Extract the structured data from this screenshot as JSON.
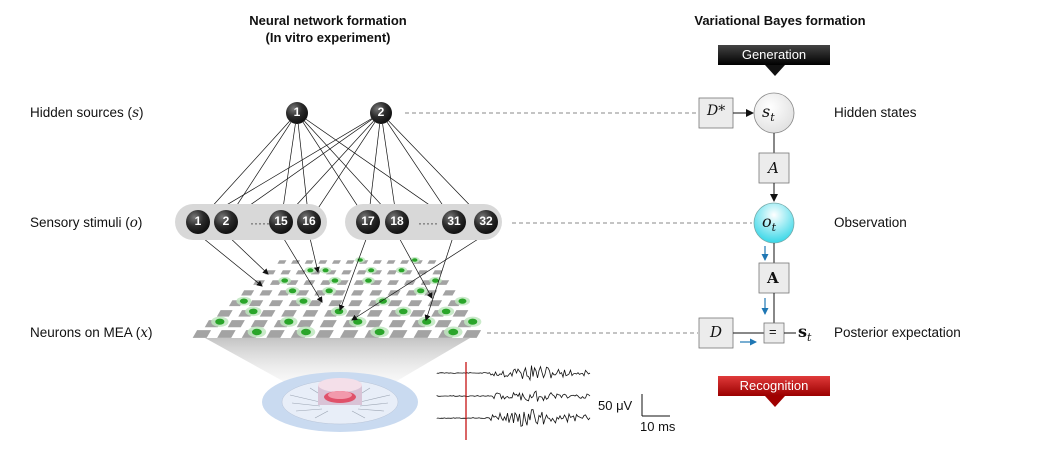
{
  "headers": {
    "left_line1": "Neural network formation",
    "left_line2": "(In vitro experiment)",
    "right": "Variational Bayes formation"
  },
  "rows": {
    "hidden_sources": "Hidden sources (",
    "hidden_sources_var": "s",
    "sensory_stimuli": "Sensory stimuli (",
    "sensory_stimuli_var": "o",
    "neurons": "Neurons on MEA (",
    "neurons_var": "x",
    "close": ")"
  },
  "sources": [
    "1",
    "2"
  ],
  "stimuli": [
    "1",
    "2",
    "15",
    "16",
    "17",
    "18",
    "31",
    "32"
  ],
  "ellipsis": "·····",
  "banners": {
    "generation": "Generation",
    "recognition": "Recognition"
  },
  "vb": {
    "d_star": "D*",
    "s_t": "s",
    "o_t": "o",
    "sub_t": "t",
    "a_italic": "A",
    "a_bold": "A",
    "d": "D",
    "equals": "=",
    "s_bold": "s"
  },
  "right_labels": {
    "hidden_states": "Hidden states",
    "observation": "Observation",
    "posterior": "Posterior expectation"
  },
  "scale": {
    "voltage": "50 μV",
    "time": "10 ms"
  },
  "colors": {
    "node_dark": "#2b2b2b",
    "pill": "#d8d8d8",
    "observation_fill": "#29d4e6",
    "generation_banner": "#111111",
    "recognition_banner": "#c00000",
    "arrow_blue": "#1f77b4",
    "neuron_green": "#2aa52a",
    "mea_blue": "#c9daf0"
  }
}
